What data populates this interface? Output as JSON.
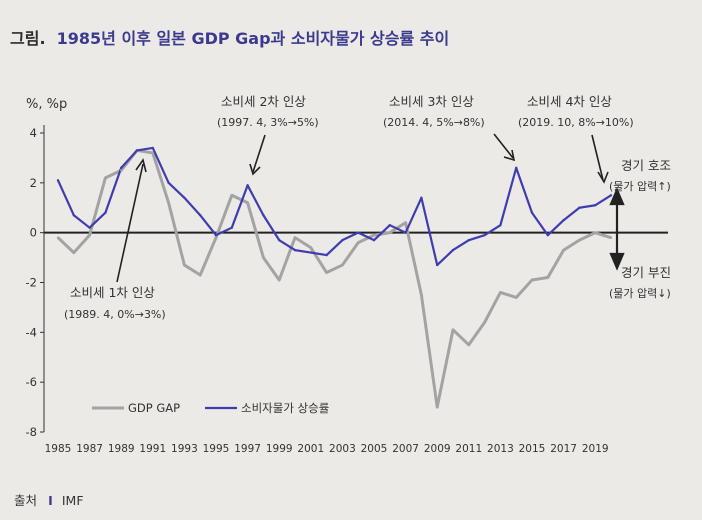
{
  "title": {
    "prefix": "그림.",
    "main": "1985년 이후 일본 GDP Gap과 소비자물가 상승률 추이"
  },
  "source": {
    "label": "출처",
    "separator": "I",
    "value": "IMF"
  },
  "colors": {
    "gdp_gap": "#a3a3a3",
    "cpi": "#3e3db0",
    "zero_line": "#222222",
    "arrow": "#222222"
  },
  "chart_data": {
    "type": "line",
    "unit_label": "%, %p",
    "ylim": [
      -8,
      4
    ],
    "yticks": [
      4,
      2,
      0,
      -2,
      -4,
      -6,
      -8
    ],
    "x": [
      1985,
      1986,
      1987,
      1988,
      1989,
      1990,
      1991,
      1992,
      1993,
      1994,
      1995,
      1996,
      1997,
      1998,
      1999,
      2000,
      2001,
      2002,
      2003,
      2004,
      2005,
      2006,
      2007,
      2008,
      2009,
      2010,
      2011,
      2012,
      2013,
      2014,
      2015,
      2016,
      2017,
      2018,
      2019,
      2020
    ],
    "xtick_labels": [
      "1985",
      "1987",
      "1989",
      "1991",
      "1993",
      "1995",
      "1997",
      "1999",
      "2001",
      "2003",
      "2005",
      "2007",
      "2009",
      "2011",
      "2013",
      "2015",
      "2017",
      "2019"
    ],
    "series": [
      {
        "name": "GDP GAP",
        "key": "gdp_gap",
        "values": [
          -0.2,
          -0.8,
          -0.1,
          2.2,
          2.5,
          3.3,
          3.2,
          1.2,
          -1.3,
          -1.7,
          -0.2,
          1.5,
          1.2,
          -1.0,
          -1.9,
          -0.2,
          -0.6,
          -1.6,
          -1.3,
          -0.4,
          -0.1,
          0.0,
          0.4,
          -2.5,
          -7.0,
          -3.9,
          -4.5,
          -3.6,
          -2.4,
          -2.6,
          -1.9,
          -1.8,
          -0.7,
          -0.3,
          0.0,
          -0.2
        ]
      },
      {
        "name": "소비자물가 상승률",
        "key": "cpi",
        "values": [
          2.1,
          0.7,
          0.2,
          0.8,
          2.6,
          3.3,
          3.4,
          2.0,
          1.4,
          0.7,
          -0.1,
          0.2,
          1.9,
          0.7,
          -0.3,
          -0.7,
          -0.8,
          -0.9,
          -0.3,
          0.0,
          -0.3,
          0.3,
          0.0,
          1.4,
          -1.3,
          -0.7,
          -0.3,
          -0.1,
          0.3,
          2.6,
          0.8,
          -0.1,
          0.5,
          1.0,
          1.1,
          1.5
        ]
      }
    ],
    "annotations": [
      {
        "title": "소비세 1차 인상",
        "sub": "(1989. 4, 0%→3%)"
      },
      {
        "title": "소비세 2차 인상",
        "sub": "(1997. 4, 3%→5%)"
      },
      {
        "title": "소비세 3차 인상",
        "sub": "(2014. 4, 5%→8%)"
      },
      {
        "title": "소비세 4차 인상",
        "sub": "(2019. 10, 8%→10%)"
      },
      {
        "title": "경기 호조",
        "sub": "(물가 압력↑)"
      },
      {
        "title": "경기 부진",
        "sub": "(물가 압력↓)"
      }
    ]
  }
}
